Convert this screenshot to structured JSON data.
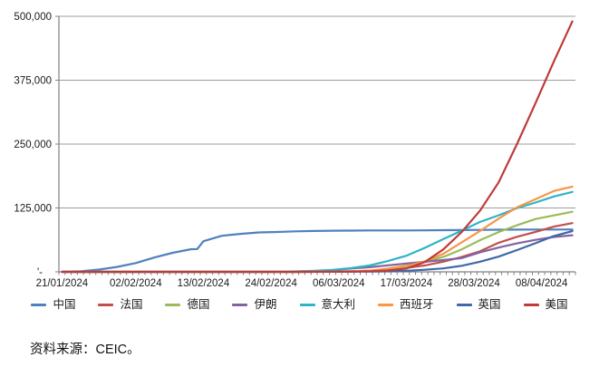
{
  "chart_data": {
    "type": "line",
    "title": "",
    "xlabel": "",
    "ylabel": "",
    "grid": "horizontal",
    "legend_position": "bottom",
    "x_axis": {
      "total_days": 84,
      "labels": [
        "21/01/2024",
        "02/02/2024",
        "13/02/2024",
        "24/02/2024",
        "06/03/2024",
        "17/03/2024",
        "28/03/2024",
        "08/04/2024"
      ],
      "label_days": [
        0,
        12,
        23,
        34,
        45,
        56,
        67,
        78
      ]
    },
    "y_axis": {
      "min": 0,
      "max": 500000,
      "ticks": [
        {
          "value": 0,
          "label": "'-"
        },
        {
          "value": 125000,
          "label": "125,000"
        },
        {
          "value": 250000,
          "label": "250,000"
        },
        {
          "value": 375000,
          "label": "375,000"
        },
        {
          "value": 500000,
          "label": "500,000"
        }
      ]
    },
    "colors": {
      "gridline": "#9c9c9c",
      "axis": "#808080",
      "text": "#1a1a1a"
    },
    "series": [
      {
        "name": "中国",
        "color": "#4F81BD",
        "points": [
          [
            0,
            440
          ],
          [
            3,
            1287
          ],
          [
            6,
            4515
          ],
          [
            9,
            9692
          ],
          [
            12,
            17205
          ],
          [
            15,
            28018
          ],
          [
            18,
            37198
          ],
          [
            21,
            44386
          ],
          [
            22,
            44759
          ],
          [
            23,
            59895
          ],
          [
            26,
            70635
          ],
          [
            29,
            74280
          ],
          [
            32,
            77041
          ],
          [
            35,
            78064
          ],
          [
            38,
            79251
          ],
          [
            41,
            80026
          ],
          [
            44,
            80552
          ],
          [
            47,
            80735
          ],
          [
            50,
            80955
          ],
          [
            53,
            81003
          ],
          [
            56,
            81058
          ],
          [
            59,
            81250
          ],
          [
            62,
            81496
          ],
          [
            65,
            81782
          ],
          [
            68,
            82122
          ],
          [
            71,
            82361
          ],
          [
            74,
            82543
          ],
          [
            77,
            82718
          ],
          [
            80,
            82883
          ],
          [
            83,
            83014
          ]
        ]
      },
      {
        "name": "法国",
        "color": "#C0504D",
        "points": [
          [
            0,
            0
          ],
          [
            12,
            6
          ],
          [
            23,
            11
          ],
          [
            32,
            12
          ],
          [
            35,
            13
          ],
          [
            38,
            57
          ],
          [
            41,
            191
          ],
          [
            44,
            377
          ],
          [
            47,
            1126
          ],
          [
            50,
            2281
          ],
          [
            53,
            4469
          ],
          [
            56,
            7652
          ],
          [
            59,
            12612
          ],
          [
            62,
            19856
          ],
          [
            65,
            29155
          ],
          [
            68,
            40174
          ],
          [
            71,
            56989
          ],
          [
            74,
            68605
          ],
          [
            77,
            78167
          ],
          [
            80,
            88560
          ],
          [
            83,
            95403
          ]
        ]
      },
      {
        "name": "德国",
        "color": "#9BBB59",
        "points": [
          [
            0,
            0
          ],
          [
            12,
            10
          ],
          [
            23,
            16
          ],
          [
            35,
            17
          ],
          [
            38,
            48
          ],
          [
            41,
            159
          ],
          [
            44,
            482
          ],
          [
            47,
            1040
          ],
          [
            50,
            1908
          ],
          [
            53,
            4585
          ],
          [
            56,
            9257
          ],
          [
            59,
            19848
          ],
          [
            62,
            29056
          ],
          [
            65,
            43938
          ],
          [
            68,
            62095
          ],
          [
            71,
            77872
          ],
          [
            74,
            91159
          ],
          [
            77,
            103374
          ],
          [
            80,
            110500
          ],
          [
            83,
            117500
          ]
        ]
      },
      {
        "name": "伊朗",
        "color": "#8064A2",
        "points": [
          [
            0,
            0
          ],
          [
            29,
            2
          ],
          [
            32,
            28
          ],
          [
            35,
            95
          ],
          [
            38,
            388
          ],
          [
            41,
            1501
          ],
          [
            44,
            3513
          ],
          [
            47,
            6566
          ],
          [
            50,
            9000
          ],
          [
            53,
            12729
          ],
          [
            56,
            16169
          ],
          [
            59,
            19644
          ],
          [
            62,
            23049
          ],
          [
            65,
            27017
          ],
          [
            68,
            38309
          ],
          [
            71,
            47593
          ],
          [
            74,
            55743
          ],
          [
            77,
            62589
          ],
          [
            80,
            68192
          ],
          [
            83,
            71686
          ]
        ]
      },
      {
        "name": "意大利",
        "color": "#2FB3C7",
        "points": [
          [
            0,
            0
          ],
          [
            28,
            3
          ],
          [
            31,
            20
          ],
          [
            32,
            62
          ],
          [
            35,
            229
          ],
          [
            38,
            888
          ],
          [
            41,
            2036
          ],
          [
            44,
            3858
          ],
          [
            47,
            7375
          ],
          [
            50,
            12462
          ],
          [
            53,
            21157
          ],
          [
            56,
            31506
          ],
          [
            59,
            47021
          ],
          [
            62,
            63927
          ],
          [
            65,
            80589
          ],
          [
            68,
            97689
          ],
          [
            71,
            110574
          ],
          [
            74,
            124632
          ],
          [
            77,
            135586
          ],
          [
            80,
            147577
          ],
          [
            83,
            156363
          ]
        ]
      },
      {
        "name": "西班牙",
        "color": "#F79646",
        "points": [
          [
            0,
            0
          ],
          [
            35,
            6
          ],
          [
            38,
            32
          ],
          [
            41,
            120
          ],
          [
            44,
            259
          ],
          [
            47,
            673
          ],
          [
            50,
            2277
          ],
          [
            53,
            6391
          ],
          [
            56,
            11748
          ],
          [
            59,
            20410
          ],
          [
            62,
            35136
          ],
          [
            65,
            57786
          ],
          [
            68,
            80110
          ],
          [
            71,
            104118
          ],
          [
            74,
            126168
          ],
          [
            77,
            141942
          ],
          [
            80,
            158273
          ],
          [
            83,
            166831
          ]
        ]
      },
      {
        "name": "英国",
        "color": "#3E68A8",
        "points": [
          [
            0,
            0
          ],
          [
            38,
            20
          ],
          [
            41,
            40
          ],
          [
            44,
            115
          ],
          [
            47,
            273
          ],
          [
            50,
            459
          ],
          [
            53,
            1143
          ],
          [
            56,
            1960
          ],
          [
            59,
            4014
          ],
          [
            62,
            6726
          ],
          [
            65,
            11812
          ],
          [
            68,
            19780
          ],
          [
            71,
            29865
          ],
          [
            74,
            42477
          ],
          [
            77,
            55949
          ],
          [
            80,
            70272
          ],
          [
            83,
            79874
          ]
        ]
      },
      {
        "name": "美国",
        "color": "#BE3B38",
        "points": [
          [
            0,
            1
          ],
          [
            12,
            8
          ],
          [
            23,
            13
          ],
          [
            32,
            15
          ],
          [
            38,
            62
          ],
          [
            41,
            98
          ],
          [
            44,
            217
          ],
          [
            47,
            518
          ],
          [
            50,
            1281
          ],
          [
            53,
            2727
          ],
          [
            56,
            6421
          ],
          [
            59,
            19100
          ],
          [
            62,
            43847
          ],
          [
            65,
            78000
          ],
          [
            68,
            120000
          ],
          [
            71,
            175000
          ],
          [
            74,
            250000
          ],
          [
            77,
            330000
          ],
          [
            80,
            412000
          ],
          [
            83,
            490000
          ]
        ]
      }
    ]
  },
  "source_note": "资料来源：CEIC。"
}
